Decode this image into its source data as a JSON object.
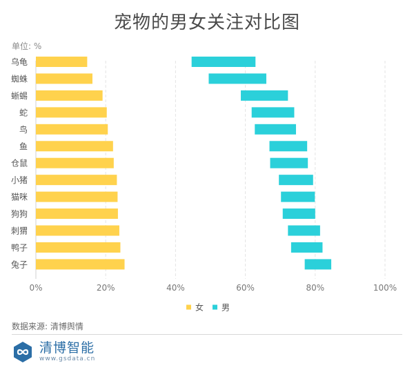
{
  "page": {
    "title": "宠物的男女关注对比图",
    "unit_label": "单位: %",
    "source_label": "数据来源: 清博舆情",
    "brand_name": "清博智能",
    "brand_url": "www.gsdata.cn"
  },
  "chart_data": {
    "type": "bar",
    "subtype": "floating-bar",
    "title": "宠物的男女关注对比图",
    "unit": "%",
    "categories": [
      "乌龟",
      "蜘蛛",
      "蜥蜴",
      "蛇",
      "鸟",
      "鱼",
      "仓鼠",
      "小猪",
      "猫咪",
      "狗狗",
      "刺猬",
      "鸭子",
      "兔子"
    ],
    "series": [
      {
        "name": "女",
        "color": "#FFD24D",
        "start": [
          0,
          0,
          0,
          0,
          0,
          0,
          0,
          0,
          0,
          0,
          0,
          0,
          0
        ],
        "end": [
          14.7,
          16.2,
          19.1,
          20.3,
          20.6,
          22.1,
          22.3,
          23.2,
          23.4,
          23.5,
          23.9,
          24.2,
          25.4
        ]
      },
      {
        "name": "男",
        "color": "#2BD0DA",
        "start": [
          44.6,
          49.5,
          58.7,
          61.8,
          62.7,
          66.9,
          67.1,
          69.6,
          70.2,
          70.7,
          72.2,
          73.1,
          77.0
        ],
        "end": [
          62.9,
          66.0,
          72.2,
          74.0,
          74.5,
          77.7,
          77.9,
          79.4,
          79.9,
          80.0,
          81.4,
          82.1,
          84.6
        ]
      }
    ],
    "xlim": [
      0,
      100
    ],
    "xticks": [
      0,
      20,
      40,
      60,
      80,
      100
    ],
    "xtick_labels": [
      "0%",
      "20%",
      "40%",
      "60%",
      "80%",
      "100%"
    ],
    "grid": "vertical-dashed",
    "legend_position": "bottom-center"
  }
}
